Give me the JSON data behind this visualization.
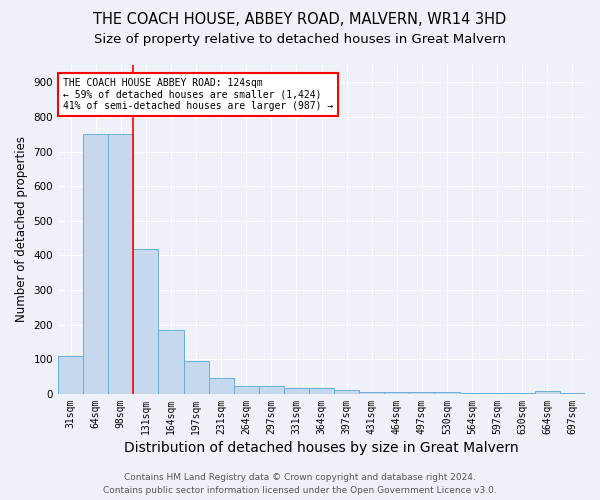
{
  "title": "THE COACH HOUSE, ABBEY ROAD, MALVERN, WR14 3HD",
  "subtitle": "Size of property relative to detached houses in Great Malvern",
  "xlabel": "Distribution of detached houses by size in Great Malvern",
  "ylabel": "Number of detached properties",
  "footer_line1": "Contains HM Land Registry data © Crown copyright and database right 2024.",
  "footer_line2": "Contains public sector information licensed under the Open Government Licence v3.0.",
  "bar_labels": [
    "31sqm",
    "64sqm",
    "98sqm",
    "131sqm",
    "164sqm",
    "197sqm",
    "231sqm",
    "264sqm",
    "297sqm",
    "331sqm",
    "364sqm",
    "397sqm",
    "431sqm",
    "464sqm",
    "497sqm",
    "530sqm",
    "564sqm",
    "597sqm",
    "630sqm",
    "664sqm",
    "697sqm"
  ],
  "bar_values": [
    110,
    750,
    750,
    420,
    185,
    95,
    45,
    22,
    22,
    18,
    18,
    12,
    5,
    5,
    5,
    5,
    2,
    2,
    2,
    8,
    2
  ],
  "bar_color": "#c5d8ed",
  "bar_edge_color": "#6aaed6",
  "red_line_index": 2,
  "annotation_line1": "THE COACH HOUSE ABBEY ROAD: 124sqm",
  "annotation_line2": "← 59% of detached houses are smaller (1,424)",
  "annotation_line3": "41% of semi-detached houses are larger (987) →",
  "ylim": [
    0,
    950
  ],
  "yticks": [
    0,
    100,
    200,
    300,
    400,
    500,
    600,
    700,
    800,
    900
  ],
  "background_color": "#eef2f8",
  "grid_color": "#ffffff",
  "title_fontsize": 10.5,
  "subtitle_fontsize": 9.5,
  "xlabel_fontsize": 10,
  "ylabel_fontsize": 8.5,
  "tick_fontsize": 7,
  "footer_fontsize": 6.5,
  "annotation_fontsize": 7
}
